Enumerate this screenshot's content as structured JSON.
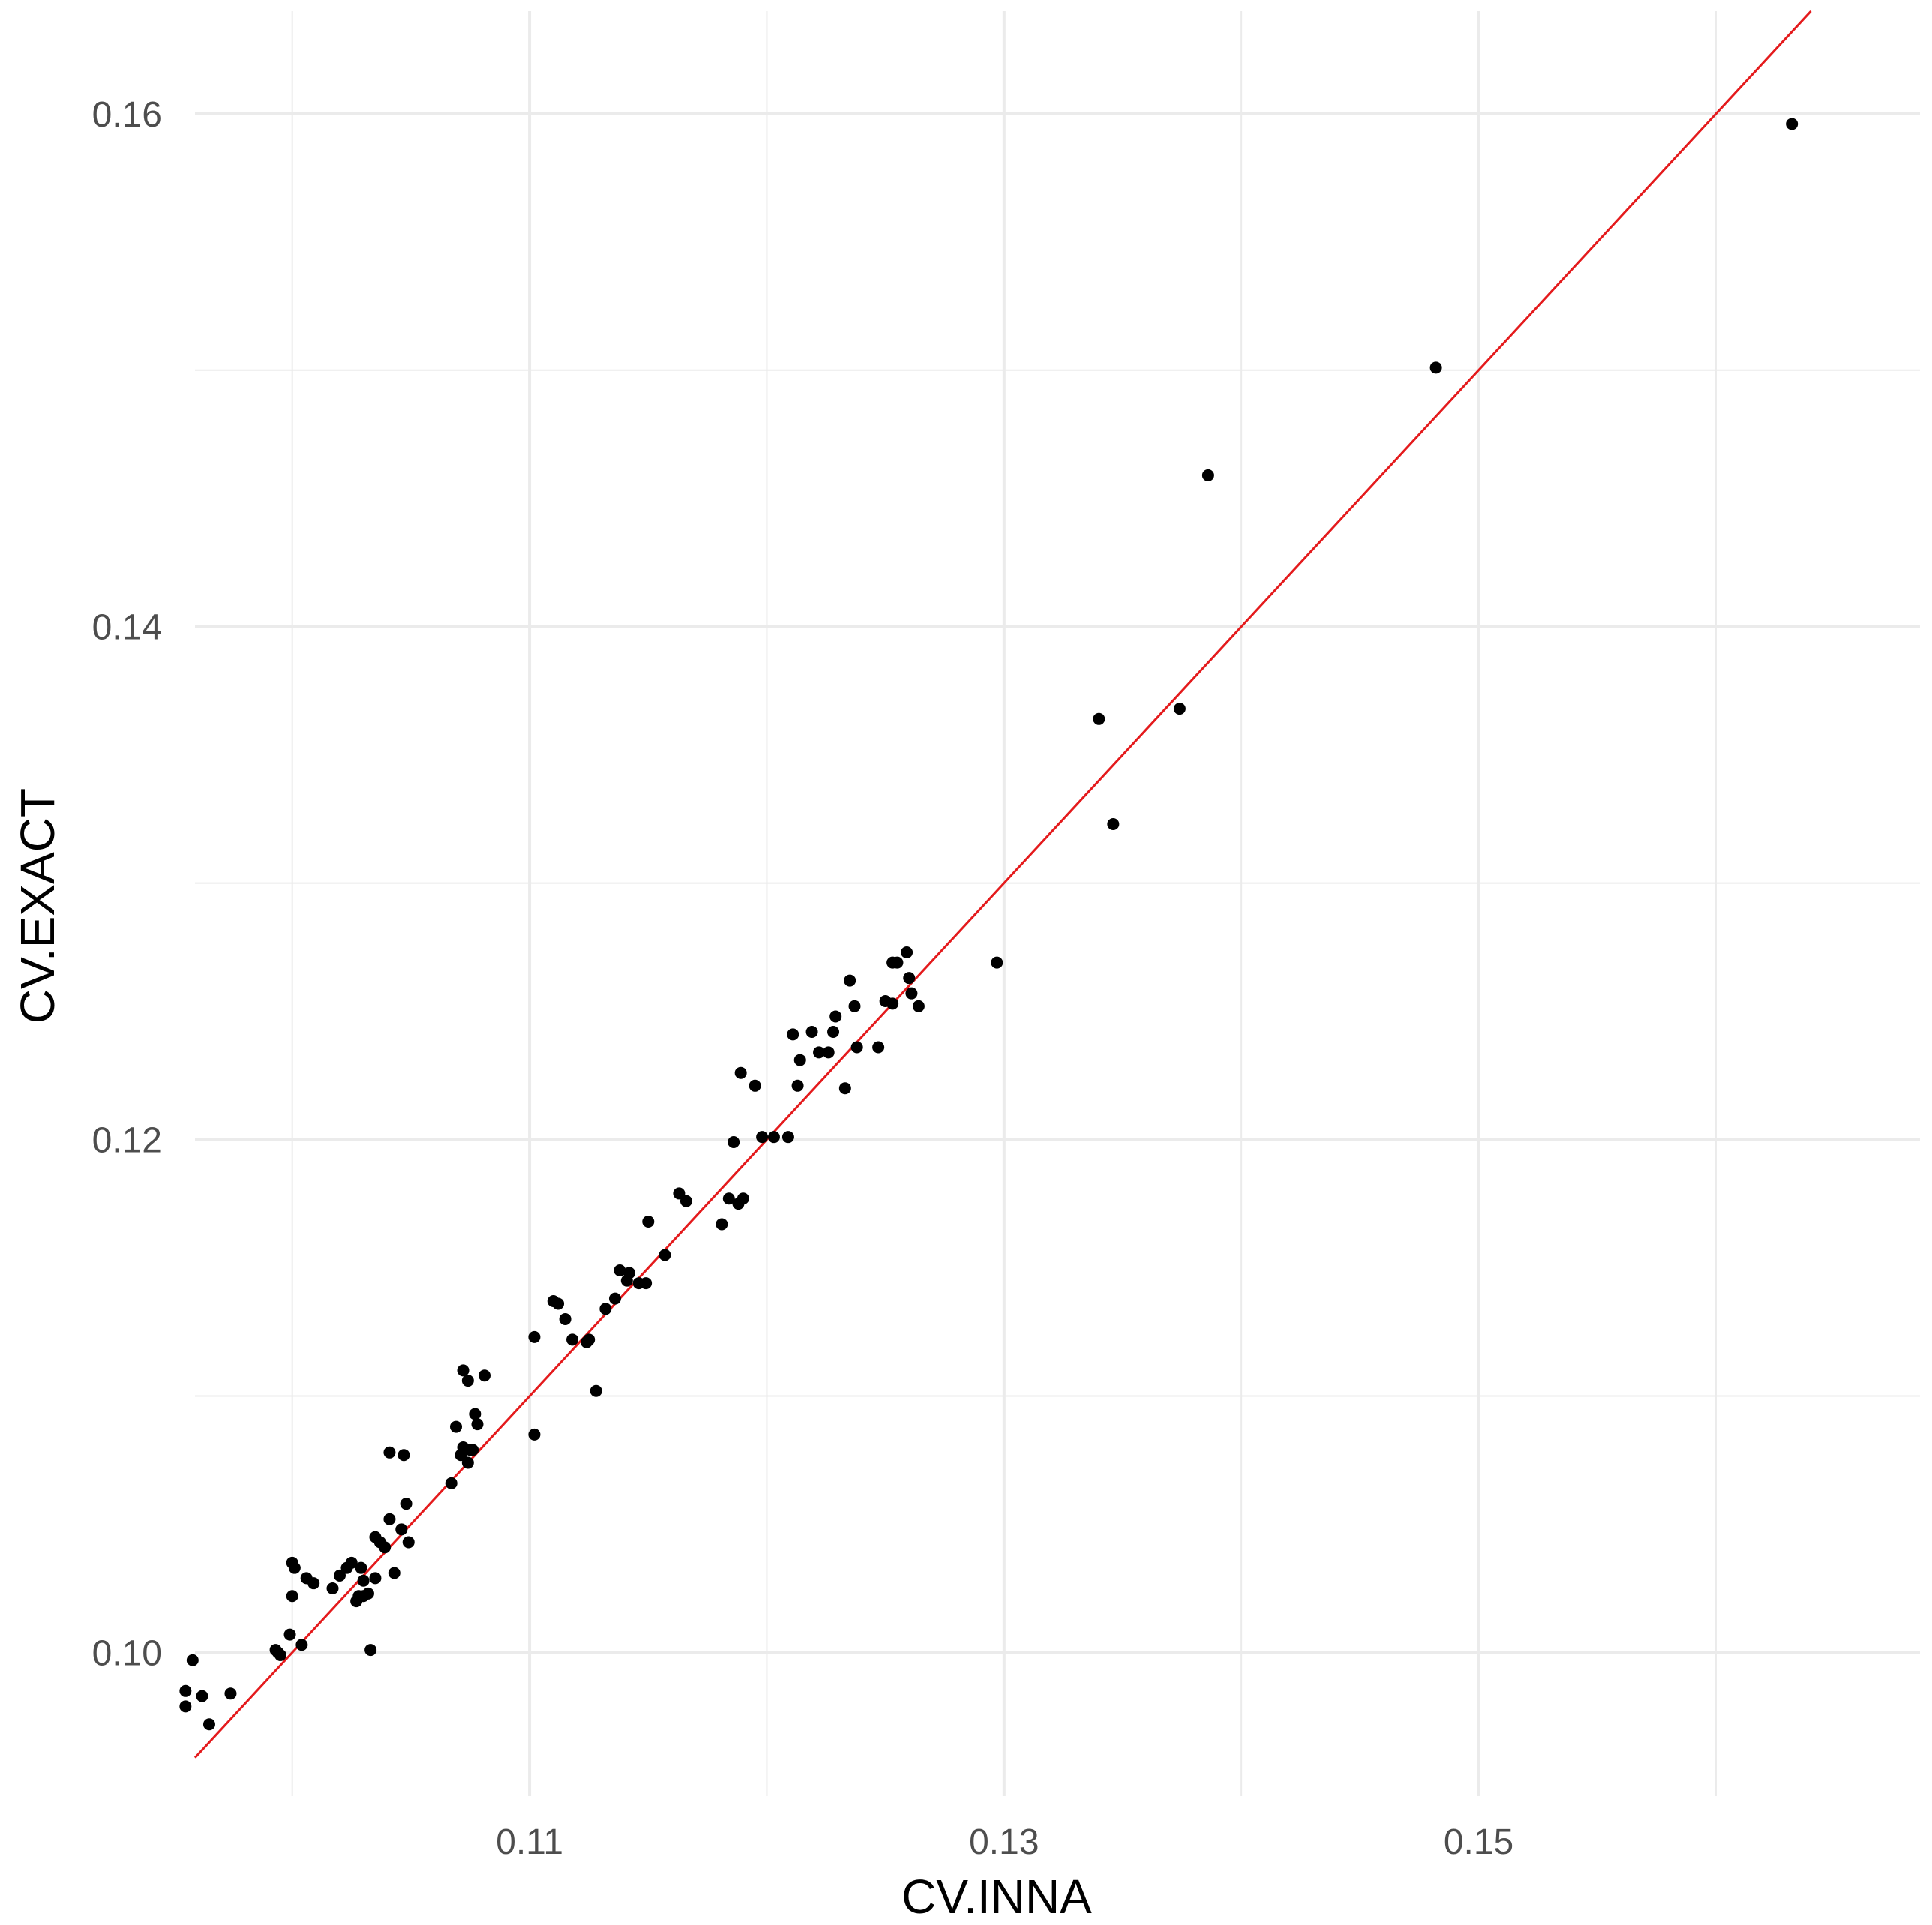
{
  "chart_data": {
    "type": "scatter",
    "title": "",
    "xlabel": "CV.INNA",
    "ylabel": "CV.EXACT",
    "xlim": [
      0.0959,
      0.1686
    ],
    "ylim": [
      0.0944,
      0.164
    ],
    "x_ticks": [
      0.11,
      0.13,
      0.15
    ],
    "x_tick_labels": [
      "0.11",
      "0.13",
      "0.15"
    ],
    "x_minor_ticks": [
      0.1,
      0.12,
      0.14,
      0.16
    ],
    "y_ticks": [
      0.1,
      0.12,
      0.14,
      0.16
    ],
    "y_tick_labels": [
      "0.10",
      "0.12",
      "0.14",
      "0.16"
    ],
    "y_minor_ticks": [
      0.11,
      0.13,
      0.15
    ],
    "grid": true,
    "legend": "none",
    "colors": {
      "points": "#000000",
      "reference_line": "#e41a1c",
      "grid": "#ebebeb"
    },
    "reference_line": {
      "type": "identity",
      "slope": 1,
      "intercept": 0
    },
    "points": [
      {
        "x": 0.0955,
        "y": 0.0985
      },
      {
        "x": 0.0955,
        "y": 0.0979
      },
      {
        "x": 0.0958,
        "y": 0.0997
      },
      {
        "x": 0.0962,
        "y": 0.0983
      },
      {
        "x": 0.0965,
        "y": 0.0972
      },
      {
        "x": 0.0974,
        "y": 0.0984
      },
      {
        "x": 0.0993,
        "y": 0.1001
      },
      {
        "x": 0.0994,
        "y": 0.1
      },
      {
        "x": 0.0995,
        "y": 0.0999
      },
      {
        "x": 0.0999,
        "y": 0.1007
      },
      {
        "x": 0.1,
        "y": 0.1022
      },
      {
        "x": 0.1,
        "y": 0.1035
      },
      {
        "x": 0.1001,
        "y": 0.1033
      },
      {
        "x": 0.1004,
        "y": 0.1003
      },
      {
        "x": 0.1006,
        "y": 0.1029
      },
      {
        "x": 0.1009,
        "y": 0.1027
      },
      {
        "x": 0.1017,
        "y": 0.1025
      },
      {
        "x": 0.102,
        "y": 0.103
      },
      {
        "x": 0.1023,
        "y": 0.1033
      },
      {
        "x": 0.1025,
        "y": 0.1035
      },
      {
        "x": 0.1027,
        "y": 0.102
      },
      {
        "x": 0.1028,
        "y": 0.1022
      },
      {
        "x": 0.1029,
        "y": 0.1033
      },
      {
        "x": 0.103,
        "y": 0.1022
      },
      {
        "x": 0.103,
        "y": 0.1028
      },
      {
        "x": 0.1032,
        "y": 0.1023
      },
      {
        "x": 0.1033,
        "y": 0.1001
      },
      {
        "x": 0.1035,
        "y": 0.1029
      },
      {
        "x": 0.1035,
        "y": 0.1045
      },
      {
        "x": 0.1037,
        "y": 0.1043
      },
      {
        "x": 0.1039,
        "y": 0.1041
      },
      {
        "x": 0.1041,
        "y": 0.1052
      },
      {
        "x": 0.1041,
        "y": 0.1078
      },
      {
        "x": 0.1043,
        "y": 0.1031
      },
      {
        "x": 0.1046,
        "y": 0.1048
      },
      {
        "x": 0.1047,
        "y": 0.1077
      },
      {
        "x": 0.1048,
        "y": 0.1058
      },
      {
        "x": 0.1049,
        "y": 0.1043
      },
      {
        "x": 0.1067,
        "y": 0.1066
      },
      {
        "x": 0.1069,
        "y": 0.1088
      },
      {
        "x": 0.1071,
        "y": 0.1077
      },
      {
        "x": 0.1072,
        "y": 0.108
      },
      {
        "x": 0.1072,
        "y": 0.111
      },
      {
        "x": 0.1074,
        "y": 0.1074
      },
      {
        "x": 0.1074,
        "y": 0.1106
      },
      {
        "x": 0.1075,
        "y": 0.1079
      },
      {
        "x": 0.1076,
        "y": 0.1079
      },
      {
        "x": 0.1077,
        "y": 0.1093
      },
      {
        "x": 0.1078,
        "y": 0.1089
      },
      {
        "x": 0.1081,
        "y": 0.1108
      },
      {
        "x": 0.1102,
        "y": 0.1085
      },
      {
        "x": 0.1102,
        "y": 0.1123
      },
      {
        "x": 0.111,
        "y": 0.1137
      },
      {
        "x": 0.1112,
        "y": 0.1136
      },
      {
        "x": 0.1115,
        "y": 0.113
      },
      {
        "x": 0.1118,
        "y": 0.1122
      },
      {
        "x": 0.1124,
        "y": 0.1121
      },
      {
        "x": 0.1125,
        "y": 0.1122
      },
      {
        "x": 0.1128,
        "y": 0.1102
      },
      {
        "x": 0.1132,
        "y": 0.1134
      },
      {
        "x": 0.1136,
        "y": 0.1138
      },
      {
        "x": 0.1138,
        "y": 0.1149
      },
      {
        "x": 0.1141,
        "y": 0.1145
      },
      {
        "x": 0.1142,
        "y": 0.1148
      },
      {
        "x": 0.1146,
        "y": 0.1144
      },
      {
        "x": 0.1149,
        "y": 0.1144
      },
      {
        "x": 0.115,
        "y": 0.1168
      },
      {
        "x": 0.1157,
        "y": 0.1155
      },
      {
        "x": 0.1163,
        "y": 0.1179
      },
      {
        "x": 0.1166,
        "y": 0.1176
      },
      {
        "x": 0.1181,
        "y": 0.1167
      },
      {
        "x": 0.1184,
        "y": 0.1177
      },
      {
        "x": 0.1186,
        "y": 0.1199
      },
      {
        "x": 0.1188,
        "y": 0.1175
      },
      {
        "x": 0.1189,
        "y": 0.1226
      },
      {
        "x": 0.119,
        "y": 0.1177
      },
      {
        "x": 0.1195,
        "y": 0.1221
      },
      {
        "x": 0.1198,
        "y": 0.1201
      },
      {
        "x": 0.1203,
        "y": 0.1201
      },
      {
        "x": 0.1209,
        "y": 0.1201
      },
      {
        "x": 0.1211,
        "y": 0.1241
      },
      {
        "x": 0.1213,
        "y": 0.1221
      },
      {
        "x": 0.1214,
        "y": 0.1231
      },
      {
        "x": 0.1219,
        "y": 0.1242
      },
      {
        "x": 0.1222,
        "y": 0.1234
      },
      {
        "x": 0.1226,
        "y": 0.1234
      },
      {
        "x": 0.1228,
        "y": 0.1242
      },
      {
        "x": 0.1229,
        "y": 0.1248
      },
      {
        "x": 0.1233,
        "y": 0.122
      },
      {
        "x": 0.1235,
        "y": 0.1262
      },
      {
        "x": 0.1237,
        "y": 0.1252
      },
      {
        "x": 0.1238,
        "y": 0.1236
      },
      {
        "x": 0.1247,
        "y": 0.1236
      },
      {
        "x": 0.125,
        "y": 0.1254
      },
      {
        "x": 0.1253,
        "y": 0.1269
      },
      {
        "x": 0.1253,
        "y": 0.1253
      },
      {
        "x": 0.1255,
        "y": 0.1269
      },
      {
        "x": 0.1259,
        "y": 0.1273
      },
      {
        "x": 0.126,
        "y": 0.1263
      },
      {
        "x": 0.1261,
        "y": 0.1257
      },
      {
        "x": 0.1264,
        "y": 0.1252
      },
      {
        "x": 0.1297,
        "y": 0.1269
      },
      {
        "x": 0.134,
        "y": 0.1364
      },
      {
        "x": 0.1346,
        "y": 0.1323
      },
      {
        "x": 0.1374,
        "y": 0.1368
      },
      {
        "x": 0.1386,
        "y": 0.1459
      },
      {
        "x": 0.1482,
        "y": 0.1501
      },
      {
        "x": 0.1632,
        "y": 0.1596
      }
    ]
  }
}
